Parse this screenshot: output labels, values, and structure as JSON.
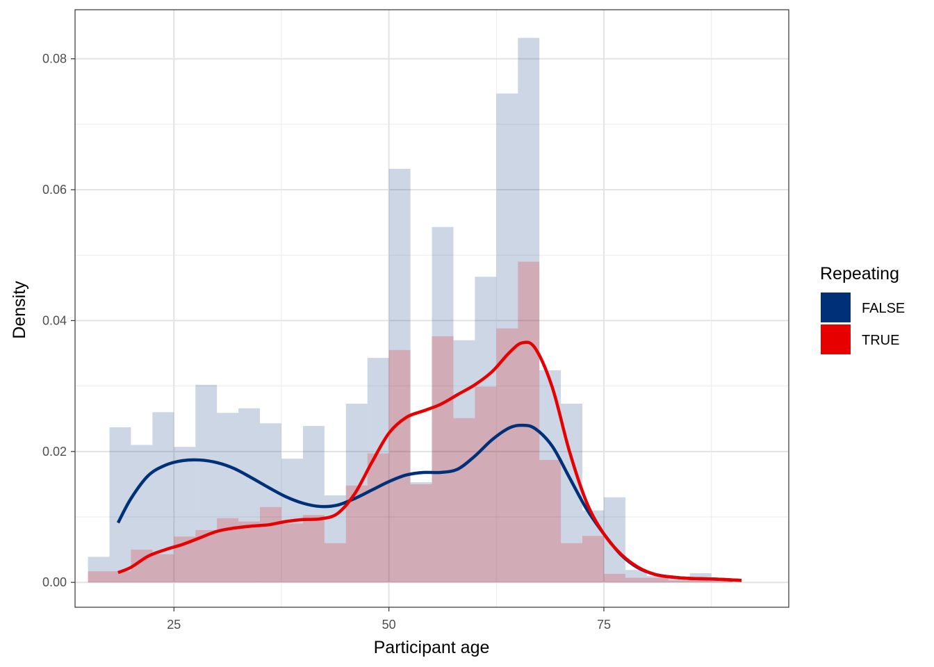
{
  "chart_data": {
    "type": "histogram-density",
    "xlabel": "Participant age",
    "ylabel": "Density",
    "xlim": [
      13.5,
      96.5
    ],
    "ylim": [
      -0.0038,
      0.0875
    ],
    "x_ticks": [
      25,
      50,
      75
    ],
    "x_tick_labels": [
      "25",
      "50",
      "75"
    ],
    "y_ticks": [
      0.0,
      0.02,
      0.04,
      0.06,
      0.08
    ],
    "y_tick_labels": [
      "0.00",
      "0.02",
      "0.04",
      "0.06",
      "0.08"
    ],
    "grid": true,
    "bin_width": 2.5,
    "legend": {
      "title": "Repeating",
      "position": "right",
      "entries": [
        {
          "label": "FALSE",
          "color": "#003178"
        },
        {
          "label": "TRUE",
          "color": "#e60000"
        }
      ]
    },
    "histograms": [
      {
        "name": "FALSE",
        "color": "#003178",
        "bins": [
          [
            16.25,
            0.0039
          ],
          [
            18.75,
            0.0237
          ],
          [
            21.25,
            0.021
          ],
          [
            23.75,
            0.026
          ],
          [
            26.25,
            0.0207
          ],
          [
            28.75,
            0.0302
          ],
          [
            31.25,
            0.0259
          ],
          [
            33.75,
            0.0266
          ],
          [
            36.25,
            0.0243
          ],
          [
            38.75,
            0.0189
          ],
          [
            41.25,
            0.0239
          ],
          [
            43.75,
            0.0133
          ],
          [
            46.25,
            0.0273
          ],
          [
            48.75,
            0.0343
          ],
          [
            51.25,
            0.0632
          ],
          [
            53.75,
            0.0153
          ],
          [
            56.25,
            0.0543
          ],
          [
            58.75,
            0.037
          ],
          [
            61.25,
            0.0467
          ],
          [
            63.75,
            0.0747
          ],
          [
            66.25,
            0.0832
          ],
          [
            68.75,
            0.0324
          ],
          [
            71.25,
            0.0273
          ],
          [
            73.75,
            0.011
          ],
          [
            76.25,
            0.013
          ],
          [
            78.75,
            0.0019
          ],
          [
            81.25,
            0.001
          ],
          [
            83.75,
            0.0007
          ],
          [
            86.25,
            0.0014
          ],
          [
            88.75,
            0.0004
          ]
        ]
      },
      {
        "name": "TRUE",
        "color": "#e60000",
        "bins": [
          [
            16.25,
            0.0017
          ],
          [
            18.75,
            0.0017
          ],
          [
            21.25,
            0.005
          ],
          [
            23.75,
            0.0043
          ],
          [
            26.25,
            0.007
          ],
          [
            28.75,
            0.008
          ],
          [
            31.25,
            0.0098
          ],
          [
            33.75,
            0.0093
          ],
          [
            36.25,
            0.0115
          ],
          [
            38.75,
            0.009
          ],
          [
            41.25,
            0.0103
          ],
          [
            43.75,
            0.006
          ],
          [
            46.25,
            0.0148
          ],
          [
            48.75,
            0.0197
          ],
          [
            51.25,
            0.0355
          ],
          [
            53.75,
            0.015
          ],
          [
            56.25,
            0.0376
          ],
          [
            58.75,
            0.0251
          ],
          [
            61.25,
            0.0299
          ],
          [
            63.75,
            0.0388
          ],
          [
            66.25,
            0.049
          ],
          [
            68.75,
            0.0187
          ],
          [
            71.25,
            0.006
          ],
          [
            73.75,
            0.0071
          ],
          [
            76.25,
            0.0013
          ],
          [
            78.75,
            0.0007
          ],
          [
            81.25,
            0.0007
          ],
          [
            83.75,
            0.0003
          ],
          [
            86.25,
            0.0004
          ],
          [
            88.75,
            0.0006
          ]
        ]
      }
    ],
    "series": [
      {
        "name": "FALSE",
        "color": "#003178",
        "points": [
          [
            18.5,
            0.0091
          ],
          [
            20.0,
            0.0128
          ],
          [
            22.0,
            0.0163
          ],
          [
            24.0,
            0.0179
          ],
          [
            26.0,
            0.0186
          ],
          [
            28.0,
            0.0187
          ],
          [
            30.0,
            0.0183
          ],
          [
            32.0,
            0.0174
          ],
          [
            34.0,
            0.016
          ],
          [
            36.0,
            0.0145
          ],
          [
            38.0,
            0.0131
          ],
          [
            40.0,
            0.0121
          ],
          [
            42.0,
            0.0116
          ],
          [
            44.0,
            0.0118
          ],
          [
            46.0,
            0.0128
          ],
          [
            48.0,
            0.0141
          ],
          [
            50.0,
            0.0154
          ],
          [
            52.0,
            0.0164
          ],
          [
            54.0,
            0.0168
          ],
          [
            56.0,
            0.0168
          ],
          [
            58.0,
            0.0173
          ],
          [
            60.0,
            0.0193
          ],
          [
            62.0,
            0.0218
          ],
          [
            64.0,
            0.0236
          ],
          [
            65.5,
            0.024
          ],
          [
            67.0,
            0.0235
          ],
          [
            69.0,
            0.0208
          ],
          [
            71.0,
            0.016
          ],
          [
            73.0,
            0.0112
          ],
          [
            75.0,
            0.0074
          ],
          [
            77.0,
            0.0042
          ],
          [
            79.0,
            0.0022
          ],
          [
            81.0,
            0.0012
          ],
          [
            83.0,
            0.0008
          ],
          [
            85.0,
            0.0006
          ],
          [
            88.0,
            0.0005
          ],
          [
            91.0,
            0.0003
          ]
        ]
      },
      {
        "name": "TRUE",
        "color": "#e60000",
        "points": [
          [
            18.5,
            0.0015
          ],
          [
            20.0,
            0.0023
          ],
          [
            22.0,
            0.004
          ],
          [
            24.0,
            0.005
          ],
          [
            26.0,
            0.0058
          ],
          [
            28.0,
            0.0068
          ],
          [
            30.0,
            0.0078
          ],
          [
            32.0,
            0.0083
          ],
          [
            34.0,
            0.0086
          ],
          [
            36.0,
            0.0088
          ],
          [
            38.0,
            0.0093
          ],
          [
            40.0,
            0.0096
          ],
          [
            42.0,
            0.0097
          ],
          [
            44.0,
            0.0105
          ],
          [
            46.0,
            0.0135
          ],
          [
            48.0,
            0.0183
          ],
          [
            50.0,
            0.0228
          ],
          [
            52.0,
            0.0252
          ],
          [
            54.0,
            0.0262
          ],
          [
            56.0,
            0.0272
          ],
          [
            58.0,
            0.0287
          ],
          [
            60.0,
            0.0302
          ],
          [
            62.0,
            0.0322
          ],
          [
            64.0,
            0.0351
          ],
          [
            65.5,
            0.0366
          ],
          [
            67.0,
            0.0358
          ],
          [
            69.0,
            0.0298
          ],
          [
            71.0,
            0.02
          ],
          [
            73.0,
            0.0122
          ],
          [
            75.0,
            0.0074
          ],
          [
            77.0,
            0.0043
          ],
          [
            79.0,
            0.0023
          ],
          [
            81.0,
            0.0012
          ],
          [
            83.0,
            0.0008
          ],
          [
            85.0,
            0.0006
          ],
          [
            88.0,
            0.0005
          ],
          [
            91.0,
            0.0003
          ]
        ]
      }
    ]
  }
}
